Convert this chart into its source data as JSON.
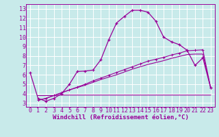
{
  "xlabel": "Windchill (Refroidissement éolien,°C)",
  "bg_color": "#c8eaea",
  "line_color": "#990099",
  "grid_color": "#ffffff",
  "xlim": [
    -0.5,
    23.5
  ],
  "ylim": [
    2.6,
    13.5
  ],
  "xticks": [
    0,
    1,
    2,
    3,
    4,
    5,
    6,
    7,
    8,
    9,
    10,
    11,
    12,
    13,
    14,
    15,
    16,
    17,
    18,
    19,
    20,
    21,
    22,
    23
  ],
  "yticks": [
    3,
    4,
    5,
    6,
    7,
    8,
    9,
    10,
    11,
    12,
    13
  ],
  "line1_x": [
    0,
    1,
    2,
    3,
    4,
    5,
    6,
    7,
    8,
    9,
    10,
    11,
    12,
    13,
    14,
    15,
    16,
    17,
    18,
    19,
    20,
    21,
    22,
    23
  ],
  "line1_y": [
    6.2,
    3.5,
    3.2,
    3.5,
    4.0,
    5.0,
    6.35,
    6.4,
    6.5,
    7.6,
    9.7,
    11.5,
    12.2,
    12.85,
    12.85,
    12.65,
    11.7,
    10.0,
    9.5,
    9.2,
    8.6,
    7.0,
    7.8,
    4.6
  ],
  "line2_x": [
    1,
    2,
    3,
    4,
    5,
    6,
    7,
    8,
    9,
    10,
    11,
    12,
    13,
    14,
    15,
    16,
    17,
    18,
    19,
    20,
    21,
    22,
    23
  ],
  "line2_y": [
    3.3,
    3.5,
    3.8,
    4.1,
    4.4,
    4.7,
    5.0,
    5.35,
    5.65,
    5.95,
    6.25,
    6.55,
    6.85,
    7.15,
    7.45,
    7.65,
    7.85,
    8.1,
    8.3,
    8.55,
    8.6,
    8.65,
    4.6
  ],
  "line3_x": [
    1,
    2,
    3,
    4,
    5,
    6,
    7,
    8,
    9,
    10,
    11,
    12,
    13,
    14,
    15,
    16,
    17,
    18,
    19,
    20,
    21,
    22,
    23
  ],
  "line3_y": [
    3.3,
    3.5,
    3.8,
    4.1,
    4.4,
    4.65,
    4.9,
    5.2,
    5.5,
    5.75,
    6.0,
    6.3,
    6.6,
    6.85,
    7.1,
    7.3,
    7.5,
    7.75,
    7.95,
    8.15,
    8.2,
    8.2,
    4.6
  ],
  "line4_x": [
    1,
    2,
    3,
    4,
    5,
    6,
    7,
    8,
    9,
    10,
    11,
    12,
    13,
    14,
    15,
    16,
    17,
    18,
    19,
    20,
    21,
    22,
    23
  ],
  "line4_y": [
    3.8,
    3.8,
    3.8,
    3.85,
    3.85,
    3.85,
    3.85,
    3.85,
    3.85,
    3.85,
    3.85,
    3.85,
    3.85,
    3.85,
    3.85,
    3.85,
    3.85,
    3.85,
    3.85,
    3.85,
    3.85,
    3.85,
    3.85
  ],
  "xlabel_fontsize": 6.5,
  "tick_fontsize": 6.0
}
